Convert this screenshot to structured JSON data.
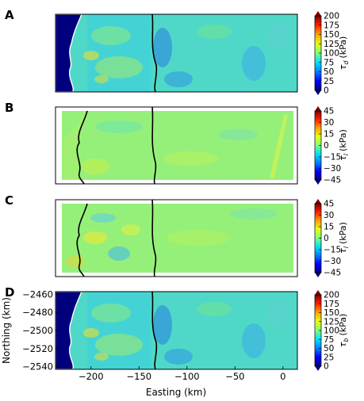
{
  "chart_data": {
    "type": "heatmap",
    "panels": [
      {
        "label": "A",
        "colorbar": {
          "symbol": "τ",
          "sub": "d",
          "unit": "(kPa)",
          "ticks": [
            "200",
            "175",
            "150",
            "125",
            "100",
            "75",
            "50",
            "25",
            "0"
          ],
          "range": [
            0,
            200
          ]
        },
        "land_mask": true,
        "show_y_ticks": false,
        "show_x_ticks": false
      },
      {
        "label": "B",
        "colorbar": {
          "symbol": "τ",
          "sub": "l",
          "unit": "(kPa)",
          "ticks": [
            "45",
            "30",
            "15",
            "0",
            "−15",
            "−30",
            "−45"
          ],
          "range": [
            -45,
            45
          ]
        },
        "land_mask": false,
        "show_y_ticks": false,
        "show_x_ticks": false
      },
      {
        "label": "C",
        "colorbar": {
          "symbol": "τ",
          "sub": "l",
          "unit": "(kPa)",
          "ticks": [
            "45",
            "30",
            "15",
            "0",
            "−15",
            "−30",
            "−45"
          ],
          "range": [
            -45,
            45
          ]
        },
        "land_mask": false,
        "show_y_ticks": false,
        "show_x_ticks": false
      },
      {
        "label": "D",
        "colorbar": {
          "symbol": "τ",
          "sub": "b",
          "unit": "(kPa)",
          "ticks": [
            "200",
            "175",
            "150",
            "125",
            "100",
            "75",
            "50",
            "25",
            "0"
          ],
          "range": [
            0,
            200
          ]
        },
        "land_mask": true,
        "show_y_ticks": true,
        "show_x_ticks": true
      }
    ],
    "x_axis": {
      "label": "Easting (km)",
      "ticks": [
        -200,
        -150,
        -100,
        -50,
        0
      ],
      "tick_labels": [
        "−200",
        "−150",
        "−100",
        "−50",
        "0"
      ],
      "range": [
        -237,
        15
      ]
    },
    "y_axis": {
      "label": "Northing (km)",
      "ticks": [
        -2460,
        -2480,
        -2500,
        -2520,
        -2540
      ],
      "tick_labels": [
        "−2460",
        "−2480",
        "−2500",
        "−2520",
        "−2540"
      ],
      "range": [
        -2543,
        -2457
      ]
    },
    "colormap": "jet"
  }
}
